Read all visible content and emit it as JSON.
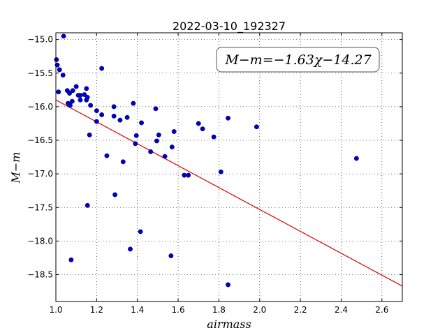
{
  "chart_data": {
    "type": "scatter",
    "title": "2022-03-10_192327",
    "xlabel": "airmass",
    "ylabel": "M−m",
    "annotation": "M−m=−1.63χ−14.27",
    "xlim": [
      1.0,
      2.7
    ],
    "ylim": [
      -18.9,
      -14.9
    ],
    "x_ticks": [
      1.0,
      1.2,
      1.4,
      1.6,
      1.8,
      2.0,
      2.2,
      2.4,
      2.6
    ],
    "x_tick_labels": [
      "1.0",
      "1.2",
      "1.4",
      "1.6",
      "1.8",
      "2.0",
      "2.2",
      "2.4",
      "2.6"
    ],
    "y_ticks": [
      -15.0,
      -15.5,
      -16.0,
      -16.5,
      -17.0,
      -17.5,
      -18.0,
      -18.5
    ],
    "y_tick_labels": [
      "−15.0",
      "−15.5",
      "−16.0",
      "−16.5",
      "−17.0",
      "−17.5",
      "−18.0",
      "−18.5"
    ],
    "grid": true,
    "point_color": "#0000cc",
    "fit_color": "#dd0000",
    "fit": {
      "slope": -1.63,
      "intercept": -14.27,
      "x_range": [
        1.0,
        2.7
      ]
    },
    "points": [
      {
        "x": 1.003,
        "y": -15.3
      },
      {
        "x": 1.007,
        "y": -15.38
      },
      {
        "x": 1.013,
        "y": -15.78
      },
      {
        "x": 1.018,
        "y": -15.45
      },
      {
        "x": 1.035,
        "y": -15.53
      },
      {
        "x": 1.038,
        "y": -14.95
      },
      {
        "x": 1.056,
        "y": -15.76
      },
      {
        "x": 1.06,
        "y": -15.95
      },
      {
        "x": 1.067,
        "y": -15.8
      },
      {
        "x": 1.07,
        "y": -15.98
      },
      {
        "x": 1.08,
        "y": -15.92
      },
      {
        "x": 1.083,
        "y": -15.76
      },
      {
        "x": 1.1,
        "y": -15.7
      },
      {
        "x": 1.11,
        "y": -15.83
      },
      {
        "x": 1.12,
        "y": -15.83
      },
      {
        "x": 1.12,
        "y": -15.9
      },
      {
        "x": 1.14,
        "y": -15.82
      },
      {
        "x": 1.15,
        "y": -15.73
      },
      {
        "x": 1.15,
        "y": -15.9
      },
      {
        "x": 1.155,
        "y": -15.86
      },
      {
        "x": 1.17,
        "y": -15.98
      },
      {
        "x": 1.165,
        "y": -16.42
      },
      {
        "x": 1.2,
        "y": -16.06
      },
      {
        "x": 1.2,
        "y": -16.22
      },
      {
        "x": 1.225,
        "y": -15.43
      },
      {
        "x": 1.225,
        "y": -16.12
      },
      {
        "x": 1.25,
        "y": -16.73
      },
      {
        "x": 1.285,
        "y": -16.0
      },
      {
        "x": 1.285,
        "y": -16.14
      },
      {
        "x": 1.29,
        "y": -17.31
      },
      {
        "x": 1.315,
        "y": -16.2
      },
      {
        "x": 1.33,
        "y": -16.82
      },
      {
        "x": 1.35,
        "y": -16.16
      },
      {
        "x": 1.365,
        "y": -18.12
      },
      {
        "x": 1.38,
        "y": -15.95
      },
      {
        "x": 1.39,
        "y": -16.55
      },
      {
        "x": 1.395,
        "y": -16.43
      },
      {
        "x": 1.415,
        "y": -17.86
      },
      {
        "x": 1.42,
        "y": -16.24
      },
      {
        "x": 1.465,
        "y": -16.67
      },
      {
        "x": 1.49,
        "y": -16.03
      },
      {
        "x": 1.495,
        "y": -16.51
      },
      {
        "x": 1.505,
        "y": -16.42
      },
      {
        "x": 1.535,
        "y": -16.74
      },
      {
        "x": 1.565,
        "y": -18.22
      },
      {
        "x": 1.57,
        "y": -16.6
      },
      {
        "x": 1.58,
        "y": -16.37
      },
      {
        "x": 1.63,
        "y": -17.02
      },
      {
        "x": 1.65,
        "y": -17.02
      },
      {
        "x": 1.7,
        "y": -16.25
      },
      {
        "x": 1.72,
        "y": -16.33
      },
      {
        "x": 1.775,
        "y": -16.45
      },
      {
        "x": 1.81,
        "y": -16.97
      },
      {
        "x": 1.845,
        "y": -16.17
      },
      {
        "x": 1.845,
        "y": -18.65
      },
      {
        "x": 1.985,
        "y": -16.3
      },
      {
        "x": 2.475,
        "y": -16.77
      },
      {
        "x": 1.155,
        "y": -17.47
      },
      {
        "x": 1.075,
        "y": -18.28
      }
    ]
  }
}
